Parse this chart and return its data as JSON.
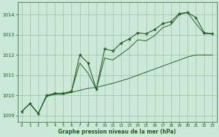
{
  "xlabel": "Graphe pression niveau de la mer (hPa)",
  "bg_color": "#cce8d8",
  "grid_color": "#9dbfaa",
  "line_color": "#1e5c1e",
  "ylim": [
    1008.7,
    1014.6
  ],
  "xlim": [
    -0.5,
    23.5
  ],
  "yticks": [
    1009,
    1010,
    1011,
    1012,
    1013,
    1014
  ],
  "xticks": [
    0,
    1,
    2,
    3,
    4,
    5,
    6,
    7,
    8,
    9,
    10,
    11,
    12,
    13,
    14,
    15,
    16,
    17,
    18,
    19,
    20,
    21,
    22,
    23
  ],
  "hours": [
    0,
    1,
    2,
    3,
    4,
    5,
    6,
    7,
    8,
    9,
    10,
    11,
    12,
    13,
    14,
    15,
    16,
    17,
    18,
    19,
    20,
    21,
    22,
    23
  ],
  "main_line": [
    1009.2,
    1009.6,
    1009.1,
    1010.0,
    1010.1,
    1010.1,
    1010.2,
    1012.0,
    1011.6,
    1010.3,
    1012.3,
    1012.2,
    1012.6,
    1012.8,
    1013.1,
    1013.05,
    1013.25,
    1013.55,
    1013.65,
    1014.05,
    1014.1,
    1013.85,
    1013.1,
    1013.05
  ],
  "lower_line": [
    1009.2,
    1009.6,
    1009.1,
    1009.95,
    1010.05,
    1010.05,
    1010.15,
    1010.25,
    1010.35,
    1010.4,
    1010.5,
    1010.6,
    1010.72,
    1010.85,
    1011.0,
    1011.15,
    1011.3,
    1011.45,
    1011.6,
    1011.75,
    1011.9,
    1012.0,
    1012.0,
    1012.0
  ],
  "upper_line": [
    1009.2,
    1009.6,
    1009.1,
    1010.0,
    1010.1,
    1010.1,
    1010.2,
    1011.6,
    1011.1,
    1010.3,
    1011.85,
    1011.75,
    1012.05,
    1012.35,
    1012.75,
    1012.7,
    1012.95,
    1013.35,
    1013.5,
    1014.0,
    1014.1,
    1013.55,
    1013.05,
    1013.05
  ]
}
